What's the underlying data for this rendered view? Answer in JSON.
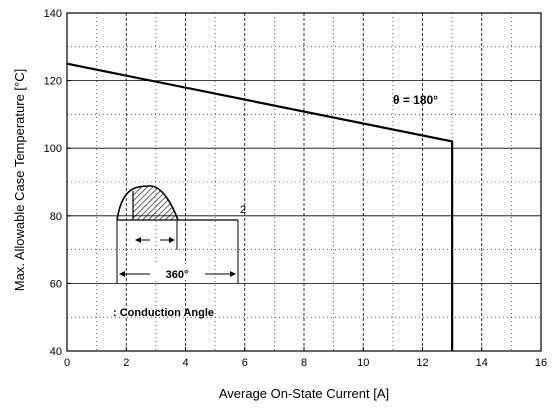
{
  "chart_data": {
    "type": "line",
    "xlabel": "Average On-State Current [A]",
    "ylabel": "Max. Allowable Case Temperature [°C]",
    "xlim": [
      0,
      16
    ],
    "ylim": [
      40,
      140
    ],
    "x_ticks": [
      "0",
      "2",
      "4",
      "6",
      "8",
      "10",
      "12",
      "14",
      "16"
    ],
    "y_ticks": [
      "40",
      "60",
      "80",
      "100",
      "120",
      "140"
    ],
    "grid": true,
    "series": [
      {
        "name": "θ = 180°",
        "x": [
          0,
          13,
          13
        ],
        "y": [
          125,
          102,
          40
        ]
      }
    ],
    "annotations": {
      "theta_label": "θ = 180°",
      "angle_label": "360°",
      "conduction_label": ": Conduction Angle",
      "marker_label": "2"
    },
    "colors": {
      "line": "#000000",
      "grid": "#000000",
      "hatch": "#000000"
    }
  }
}
